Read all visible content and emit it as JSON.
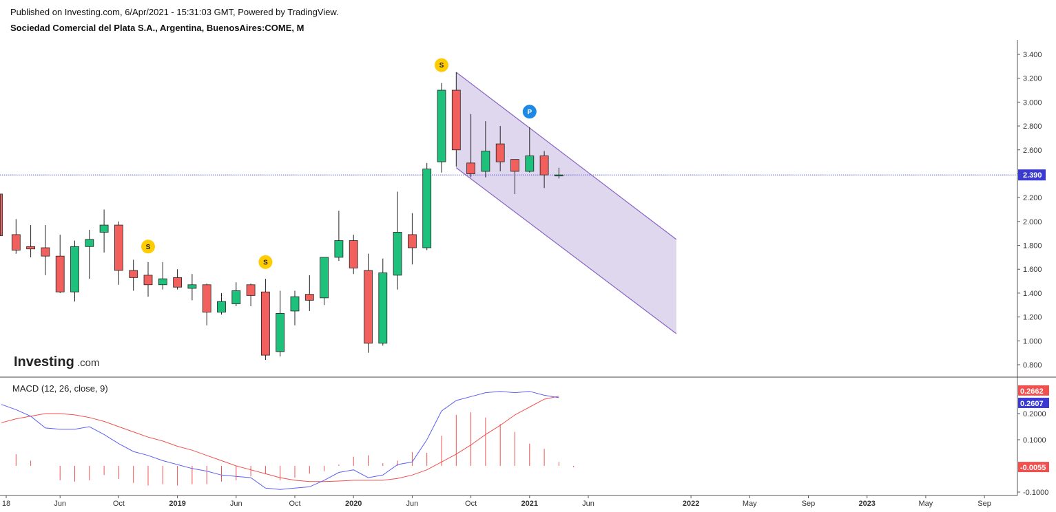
{
  "header": {
    "published": "Published on Investing.com, 6/Apr/2021 - 15:31:03 GMT, Powered by TradingView.",
    "symbol": "Sociedad Comercial del Plata S.A., Argentina, BuenosAires:COME, M"
  },
  "logo": {
    "word": "Investing",
    "suffix": ".com"
  },
  "colors": {
    "up": "#1ec17c",
    "down": "#f2605e",
    "channel_fill": "#d8d0ea",
    "channel_line": "#8a63c4",
    "macd_line": "#5b5ff0",
    "signal_line": "#f0504e",
    "hist": "#f0504e",
    "price_tag": "#3a3ad0",
    "marker_s": "#ffcc00",
    "marker_p": "#1e88e5"
  },
  "chart_data": [
    {
      "type": "candlestick",
      "title": "Sociedad Comercial del Plata S.A., Argentina, BuenosAires:COME, M",
      "x_axis_labels": [
        "18",
        "Jun",
        "Oct",
        "2019",
        "Jun",
        "Oct",
        "2020",
        "Jun",
        "Oct",
        "2021",
        "Jun",
        "2022",
        "May",
        "Sep",
        "2023",
        "May",
        "Sep"
      ],
      "y_ticks": [
        "3.400",
        "3.200",
        "3.000",
        "2.800",
        "2.600",
        "2.400",
        "2.200",
        "2.000",
        "1.800",
        "1.600",
        "1.400",
        "1.200",
        "1.000",
        "0.800"
      ],
      "ylim": [
        0.72,
        3.5
      ],
      "last_price": "2.390",
      "candles": [
        {
          "o": 2.23,
          "h": 2.23,
          "l": 1.88,
          "c": 1.88
        },
        {
          "o": 1.89,
          "h": 2.02,
          "l": 1.73,
          "c": 1.76
        },
        {
          "o": 1.79,
          "h": 1.97,
          "l": 1.7,
          "c": 1.77
        },
        {
          "o": 1.78,
          "h": 1.97,
          "l": 1.55,
          "c": 1.71
        },
        {
          "o": 1.71,
          "h": 1.89,
          "l": 1.4,
          "c": 1.41
        },
        {
          "o": 1.41,
          "h": 1.84,
          "l": 1.33,
          "c": 1.79
        },
        {
          "o": 1.79,
          "h": 1.93,
          "l": 1.52,
          "c": 1.85
        },
        {
          "o": 1.91,
          "h": 2.1,
          "l": 1.74,
          "c": 1.97
        },
        {
          "o": 1.97,
          "h": 2.0,
          "l": 1.47,
          "c": 1.59
        },
        {
          "o": 1.59,
          "h": 1.68,
          "l": 1.42,
          "c": 1.53
        },
        {
          "o": 1.55,
          "h": 1.66,
          "l": 1.37,
          "c": 1.47
        },
        {
          "o": 1.47,
          "h": 1.66,
          "l": 1.43,
          "c": 1.52
        },
        {
          "o": 1.53,
          "h": 1.6,
          "l": 1.43,
          "c": 1.45
        },
        {
          "o": 1.44,
          "h": 1.56,
          "l": 1.34,
          "c": 1.47
        },
        {
          "o": 1.47,
          "h": 1.48,
          "l": 1.13,
          "c": 1.24
        },
        {
          "o": 1.24,
          "h": 1.4,
          "l": 1.22,
          "c": 1.33
        },
        {
          "o": 1.31,
          "h": 1.49,
          "l": 1.29,
          "c": 1.42
        },
        {
          "o": 1.47,
          "h": 1.48,
          "l": 1.29,
          "c": 1.38
        },
        {
          "o": 1.41,
          "h": 1.52,
          "l": 0.84,
          "c": 0.88
        },
        {
          "o": 0.91,
          "h": 1.42,
          "l": 0.87,
          "c": 1.23
        },
        {
          "o": 1.25,
          "h": 1.42,
          "l": 1.13,
          "c": 1.37
        },
        {
          "o": 1.39,
          "h": 1.55,
          "l": 1.25,
          "c": 1.34
        },
        {
          "o": 1.36,
          "h": 1.7,
          "l": 1.3,
          "c": 1.7
        },
        {
          "o": 1.7,
          "h": 2.09,
          "l": 1.67,
          "c": 1.84
        },
        {
          "o": 1.84,
          "h": 1.89,
          "l": 1.56,
          "c": 1.61
        },
        {
          "o": 1.59,
          "h": 1.73,
          "l": 0.9,
          "c": 0.98
        },
        {
          "o": 0.98,
          "h": 1.69,
          "l": 0.96,
          "c": 1.57
        },
        {
          "o": 1.55,
          "h": 2.25,
          "l": 1.43,
          "c": 1.91
        },
        {
          "o": 1.89,
          "h": 2.07,
          "l": 1.64,
          "c": 1.78
        },
        {
          "o": 1.78,
          "h": 2.49,
          "l": 1.76,
          "c": 2.44
        },
        {
          "o": 2.5,
          "h": 3.16,
          "l": 2.41,
          "c": 3.1
        },
        {
          "o": 3.1,
          "h": 3.25,
          "l": 2.46,
          "c": 2.6
        },
        {
          "o": 2.49,
          "h": 2.9,
          "l": 2.37,
          "c": 2.4
        },
        {
          "o": 2.42,
          "h": 2.84,
          "l": 2.37,
          "c": 2.59
        },
        {
          "o": 2.65,
          "h": 2.8,
          "l": 2.42,
          "c": 2.5
        },
        {
          "o": 2.52,
          "h": 2.52,
          "l": 2.23,
          "c": 2.42
        },
        {
          "o": 2.42,
          "h": 2.79,
          "l": 2.41,
          "c": 2.55
        },
        {
          "o": 2.55,
          "h": 2.59,
          "l": 2.28,
          "c": 2.39
        },
        {
          "o": 2.39,
          "h": 2.45,
          "l": 2.36,
          "c": 2.39
        }
      ],
      "channel": {
        "upper": [
          {
            "i": 31,
            "v": 3.25
          },
          {
            "i": 46,
            "v": 1.85
          }
        ],
        "lower": [
          {
            "i": 31,
            "v": 2.45
          },
          {
            "i": 46,
            "v": 1.06
          }
        ]
      },
      "markers": [
        {
          "i": 10,
          "v": 1.79,
          "label": "S",
          "kind": "s"
        },
        {
          "i": 18,
          "v": 1.66,
          "label": "S",
          "kind": "s"
        },
        {
          "i": 30,
          "v": 3.31,
          "label": "S",
          "kind": "s"
        },
        {
          "i": 36,
          "v": 2.92,
          "label": "P",
          "kind": "p"
        }
      ]
    },
    {
      "type": "line",
      "title": "MACD (12, 26, close, 9)",
      "y_ticks": [
        "0.2000",
        "0.1000",
        "-0.1000"
      ],
      "ylim": [
        -0.12,
        0.31
      ],
      "tags": {
        "signal": "0.2662",
        "macd": "0.2607",
        "hist": "-0.0055"
      },
      "series": [
        {
          "name": "macd",
          "values": [
            0.235,
            0.215,
            0.19,
            0.145,
            0.14,
            0.14,
            0.15,
            0.12,
            0.085,
            0.055,
            0.04,
            0.02,
            0.005,
            -0.01,
            -0.02,
            -0.035,
            -0.04,
            -0.045,
            -0.085,
            -0.09,
            -0.085,
            -0.08,
            -0.055,
            -0.025,
            -0.015,
            -0.045,
            -0.035,
            0.005,
            0.015,
            0.1,
            0.21,
            0.25,
            0.265,
            0.28,
            0.285,
            0.28,
            0.285,
            0.27,
            0.2607
          ]
        },
        {
          "name": "signal",
          "values": [
            0.165,
            0.18,
            0.19,
            0.2,
            0.2,
            0.195,
            0.185,
            0.17,
            0.15,
            0.13,
            0.11,
            0.095,
            0.075,
            0.06,
            0.04,
            0.02,
            0.0,
            -0.015,
            -0.03,
            -0.045,
            -0.055,
            -0.06,
            -0.06,
            -0.058,
            -0.055,
            -0.055,
            -0.055,
            -0.048,
            -0.035,
            -0.015,
            0.015,
            0.045,
            0.08,
            0.12,
            0.155,
            0.195,
            0.225,
            0.255,
            0.2662
          ]
        },
        {
          "name": "histogram",
          "values": [
            0.045,
            0.02,
            0.0,
            -0.055,
            -0.06,
            -0.055,
            -0.035,
            -0.05,
            -0.065,
            -0.075,
            -0.07,
            -0.075,
            -0.07,
            -0.07,
            -0.06,
            -0.055,
            -0.04,
            -0.03,
            -0.055,
            -0.045,
            -0.03,
            -0.02,
            0.005,
            0.035,
            0.04,
            0.01,
            0.02,
            0.053,
            0.05,
            0.115,
            0.195,
            0.205,
            0.185,
            0.16,
            0.13,
            0.085,
            0.065,
            0.015,
            -0.0055
          ]
        }
      ]
    }
  ]
}
